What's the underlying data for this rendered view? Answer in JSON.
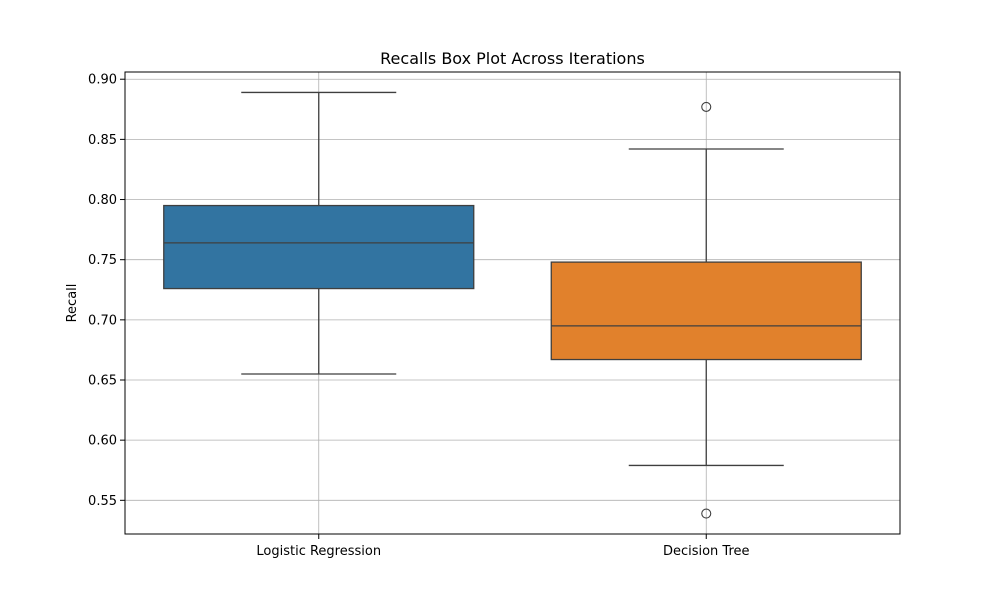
{
  "chart_data": {
    "type": "box",
    "title": "Recalls Box Plot Across Iterations",
    "xlabel": "",
    "ylabel": "Recall",
    "ylim": [
      0.522,
      0.906
    ],
    "yticks": [
      "0.55",
      "0.60",
      "0.65",
      "0.70",
      "0.75",
      "0.80",
      "0.85",
      "0.90"
    ],
    "grid": true,
    "categories": [
      "Logistic Regression",
      "Decision Tree"
    ],
    "boxes": [
      {
        "category": "Logistic Regression",
        "whisker_low": 0.655,
        "q1": 0.726,
        "median": 0.764,
        "q3": 0.795,
        "whisker_high": 0.889,
        "outliers": [],
        "color": "#3274a1"
      },
      {
        "category": "Decision Tree",
        "whisker_low": 0.579,
        "q1": 0.667,
        "median": 0.695,
        "q3": 0.748,
        "whisker_high": 0.842,
        "outliers": [
          0.877,
          0.539
        ],
        "color": "#e1812c"
      }
    ]
  }
}
